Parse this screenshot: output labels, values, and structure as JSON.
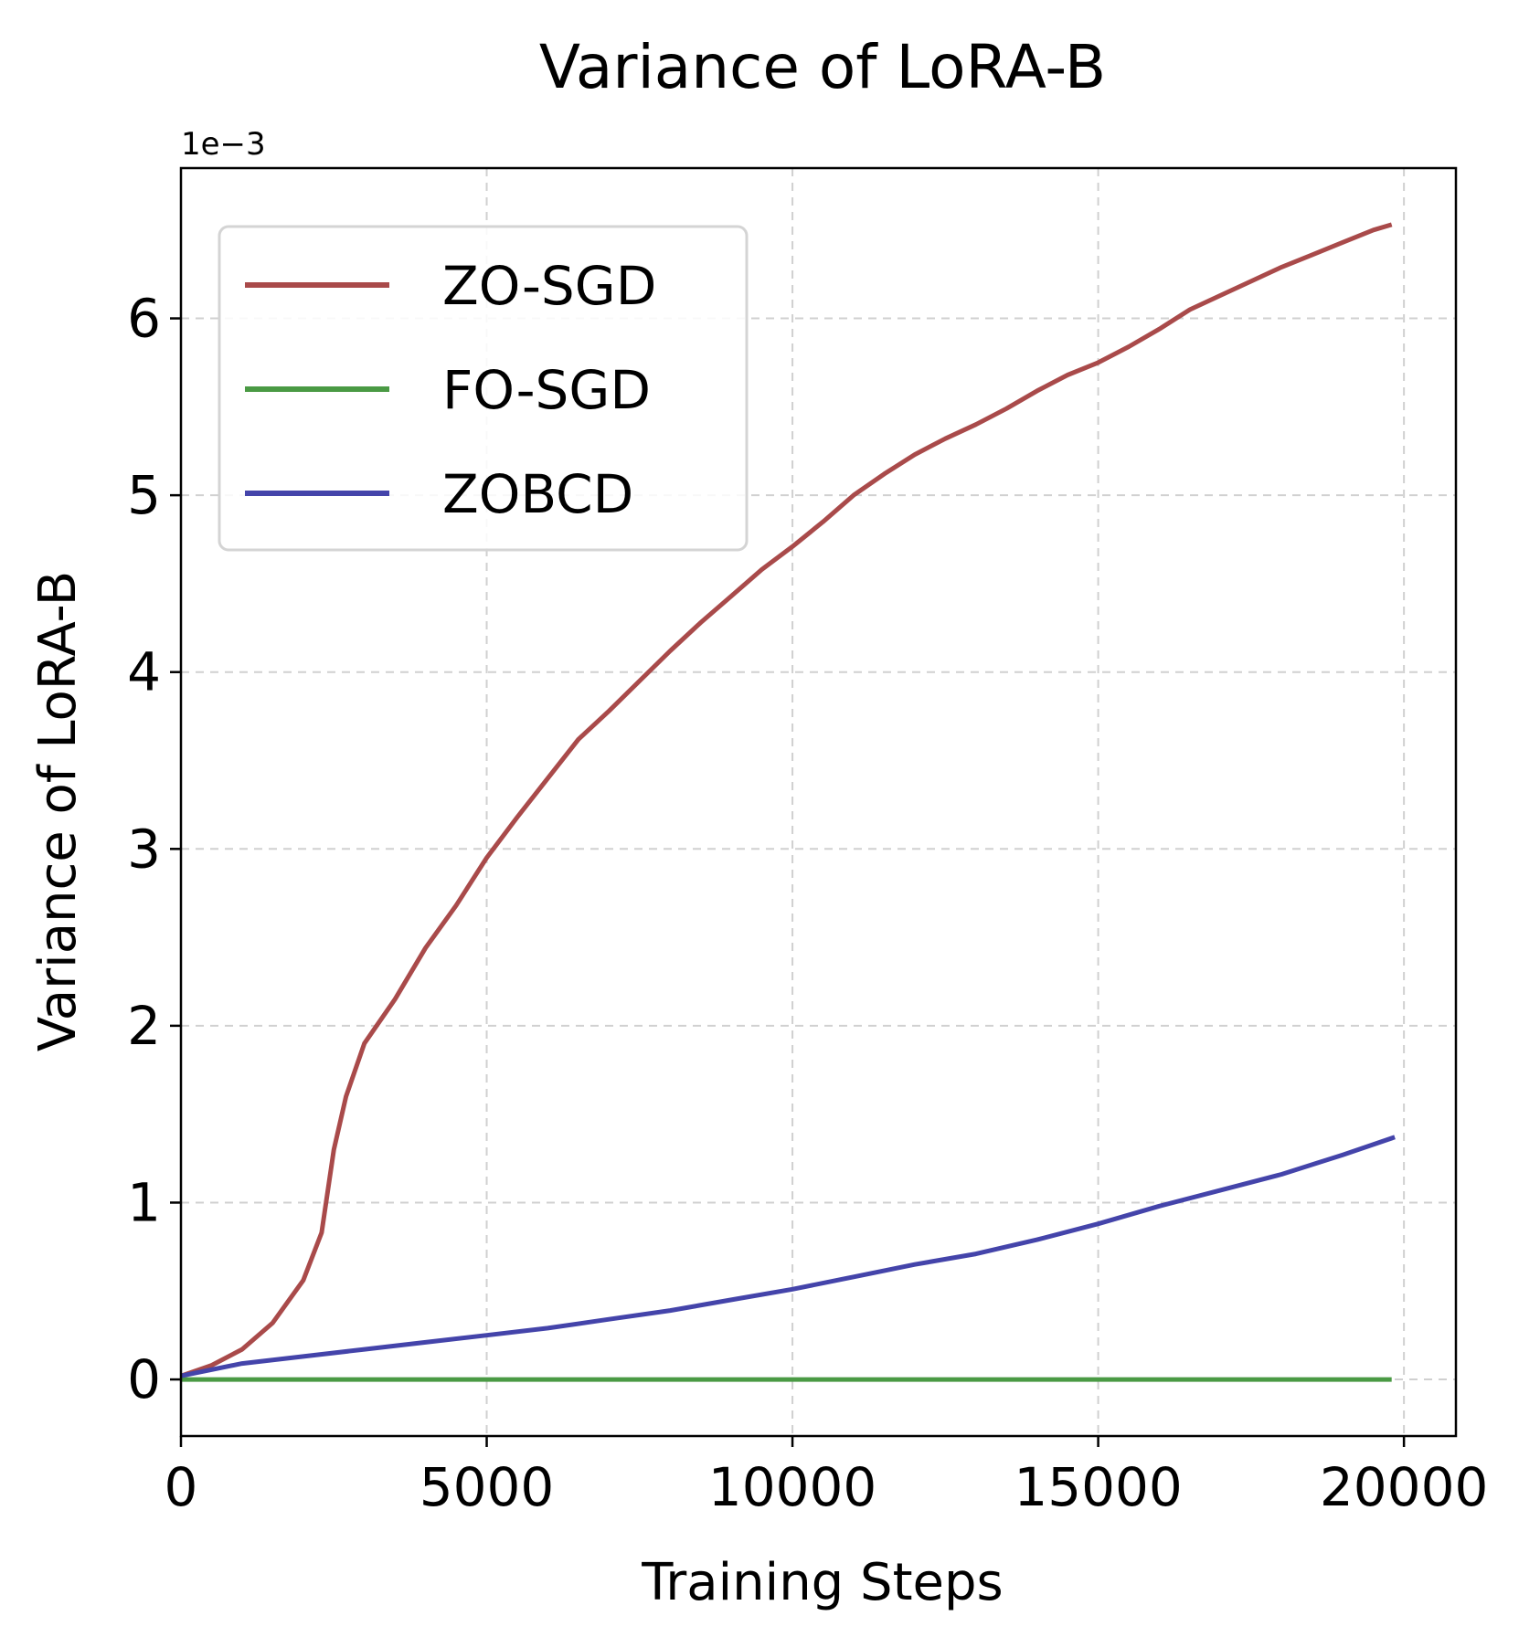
{
  "chart_data": {
    "type": "line",
    "title": "Variance of LoRA-B",
    "xlabel": "Training Steps",
    "ylabel": "Variance of LoRA-B",
    "y_offset_label": "1e−3",
    "xlim": [
      0,
      20850
    ],
    "ylim": [
      -0.32,
      6.85
    ],
    "x_ticks": [
      0,
      5000,
      10000,
      15000,
      20000
    ],
    "x_tick_labels": [
      "0",
      "5000",
      "10000",
      "15000",
      "20000"
    ],
    "y_ticks": [
      0,
      1,
      2,
      3,
      4,
      5,
      6
    ],
    "y_tick_labels": [
      "0",
      "1",
      "2",
      "3",
      "4",
      "5",
      "6"
    ],
    "grid": true,
    "legend_position": "top-left",
    "series": [
      {
        "name": "ZO-SGD",
        "color": "#a94a4a",
        "x": [
          0,
          500,
          1000,
          1500,
          2000,
          2300,
          2500,
          2700,
          3000,
          3500,
          4000,
          4500,
          5000,
          5500,
          6000,
          6500,
          7000,
          7500,
          8000,
          8500,
          9000,
          9500,
          10000,
          10500,
          11000,
          11500,
          12000,
          12500,
          13000,
          13500,
          14000,
          14500,
          15000,
          15500,
          16000,
          16500,
          17000,
          17500,
          18000,
          18500,
          19000,
          19500,
          19800
        ],
        "y": [
          0.02,
          0.08,
          0.17,
          0.32,
          0.56,
          0.83,
          1.3,
          1.6,
          1.9,
          2.15,
          2.44,
          2.68,
          2.95,
          3.18,
          3.4,
          3.62,
          3.78,
          3.95,
          4.12,
          4.28,
          4.43,
          4.58,
          4.71,
          4.85,
          5.0,
          5.12,
          5.23,
          5.32,
          5.4,
          5.49,
          5.59,
          5.68,
          5.75,
          5.84,
          5.94,
          6.05,
          6.13,
          6.21,
          6.29,
          6.36,
          6.43,
          6.5,
          6.53
        ]
      },
      {
        "name": "FO-SGD",
        "color": "#4a9a44",
        "x": [
          0,
          19800
        ],
        "y": [
          0.0,
          0.0
        ]
      },
      {
        "name": "ZOBCD",
        "color": "#4444aa",
        "x": [
          0,
          1000,
          2000,
          3000,
          4000,
          5000,
          6000,
          7000,
          8000,
          9000,
          10000,
          11000,
          12000,
          13000,
          14000,
          15000,
          16000,
          17000,
          18000,
          19000,
          19850
        ],
        "y": [
          0.02,
          0.09,
          0.13,
          0.17,
          0.21,
          0.25,
          0.29,
          0.34,
          0.39,
          0.45,
          0.51,
          0.58,
          0.65,
          0.71,
          0.79,
          0.88,
          0.98,
          1.07,
          1.16,
          1.27,
          1.37
        ]
      }
    ]
  }
}
